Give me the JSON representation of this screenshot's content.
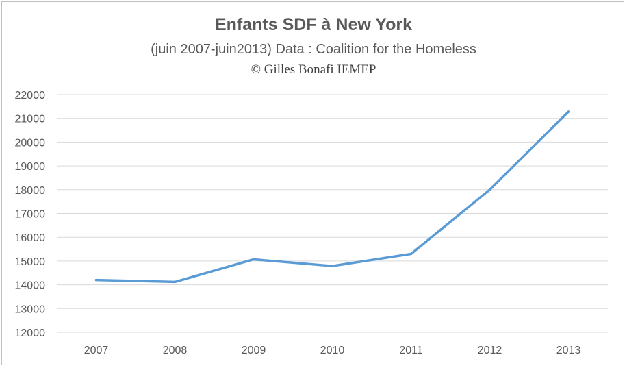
{
  "chart_data": {
    "type": "line",
    "title": "Enfants SDF à New York",
    "subtitle": "(juin 2007-juin2013) Data : Coalition for the Homeless",
    "credit": "© Gilles Bonafi   IEMEP",
    "categories": [
      "2007",
      "2008",
      "2009",
      "2010",
      "2011",
      "2012",
      "2013"
    ],
    "series": [
      {
        "values": [
          14200,
          14120,
          15070,
          14790,
          15300,
          18000,
          21280
        ]
      }
    ],
    "ylim": [
      12000,
      22000
    ],
    "yticks": [
      12000,
      13000,
      14000,
      15000,
      16000,
      17000,
      18000,
      19000,
      20000,
      21000,
      22000
    ],
    "grid": true,
    "legend": "none",
    "colors": {
      "line": "#5b9bd5",
      "grid": "#d9d9d9",
      "text": "#595959"
    }
  }
}
